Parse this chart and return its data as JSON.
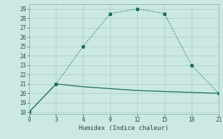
{
  "line1_x": [
    0,
    3,
    6,
    9,
    12,
    15,
    18,
    21
  ],
  "line1_y": [
    18,
    21,
    25,
    28.5,
    29,
    28.5,
    23,
    20
  ],
  "line2_x": [
    0,
    3,
    6,
    9,
    12,
    15,
    18,
    21
  ],
  "line2_y": [
    18,
    21,
    20.7,
    20.5,
    20.3,
    20.2,
    20.1,
    20
  ],
  "color": "#1a6b5a",
  "bg_color": "#cce8e4",
  "xlabel": "Humidex (Indice chaleur)",
  "xlim": [
    0,
    21
  ],
  "ylim": [
    17.8,
    29.5
  ],
  "xticks": [
    0,
    3,
    6,
    9,
    12,
    15,
    18,
    21
  ],
  "yticks": [
    18,
    19,
    20,
    21,
    22,
    23,
    24,
    25,
    26,
    27,
    28,
    29
  ],
  "grid_color": "#aecfcb",
  "tick_color": "#2a4a44"
}
